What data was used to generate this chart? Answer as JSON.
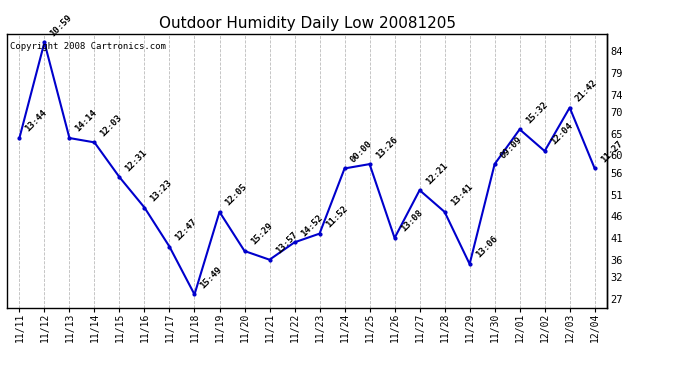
{
  "title": "Outdoor Humidity Daily Low 20081205",
  "copyright_text": "Copyright 2008 Cartronics.com",
  "line_color": "#0000CC",
  "marker_color": "#0000CC",
  "background_color": "#ffffff",
  "grid_color": "#bbbbbb",
  "x_labels": [
    "11/11",
    "11/12",
    "11/13",
    "11/14",
    "11/15",
    "11/16",
    "11/17",
    "11/18",
    "11/19",
    "11/20",
    "11/21",
    "11/22",
    "11/23",
    "11/24",
    "11/25",
    "11/26",
    "11/27",
    "11/28",
    "11/29",
    "11/30",
    "12/01",
    "12/02",
    "12/03",
    "12/04"
  ],
  "y_values": [
    64,
    86,
    64,
    63,
    55,
    48,
    39,
    28,
    47,
    38,
    36,
    40,
    42,
    57,
    58,
    41,
    52,
    47,
    35,
    58,
    66,
    61,
    71,
    57
  ],
  "point_labels": [
    "13:44",
    "10:59",
    "14:14",
    "12:03",
    "12:31",
    "13:23",
    "12:47",
    "15:49",
    "12:05",
    "15:29",
    "13:57",
    "14:52",
    "11:52",
    "00:00",
    "13:26",
    "13:08",
    "12:21",
    "13:41",
    "13:06",
    "09:09",
    "15:32",
    "12:04",
    "21:42",
    "11:27"
  ],
  "ylim": [
    25,
    88
  ],
  "yticks_right": [
    27,
    32,
    36,
    41,
    46,
    51,
    56,
    60,
    65,
    70,
    74,
    79,
    84
  ],
  "title_fontsize": 11,
  "label_fontsize": 6.5,
  "xtick_fontsize": 7,
  "ytick_fontsize": 7.5,
  "copyright_fontsize": 6.5
}
